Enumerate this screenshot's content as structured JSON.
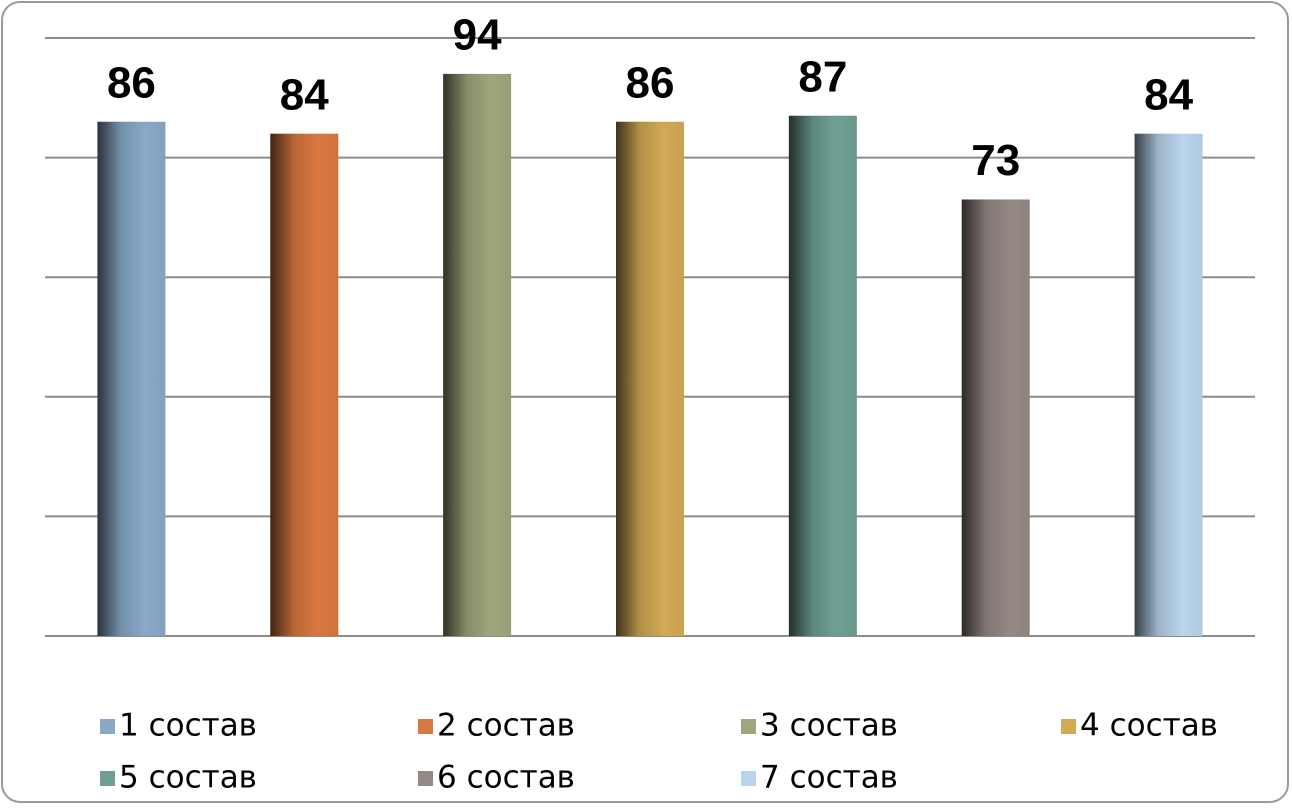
{
  "chart_data": {
    "type": "bar",
    "series": [
      {
        "name": "1 состав",
        "color": "#8aa9c8",
        "values": [
          86
        ]
      },
      {
        "name": "2 состав",
        "color": "#d9783f",
        "values": [
          84
        ]
      },
      {
        "name": "3 состав",
        "color": "#a0a57c",
        "values": [
          94
        ]
      },
      {
        "name": "4 состав",
        "color": "#d2a955",
        "values": [
          86
        ]
      },
      {
        "name": "5 состав",
        "color": "#6f9f93",
        "values": [
          87
        ]
      },
      {
        "name": "6 состав",
        "color": "#958985",
        "values": [
          73
        ]
      },
      {
        "name": "7 состав",
        "color": "#b9d4ec",
        "values": [
          84
        ]
      }
    ],
    "ylim": [
      0,
      100
    ],
    "yticks": [
      0,
      20,
      40,
      60,
      80,
      100
    ],
    "grid": true,
    "legend": "bottom"
  }
}
